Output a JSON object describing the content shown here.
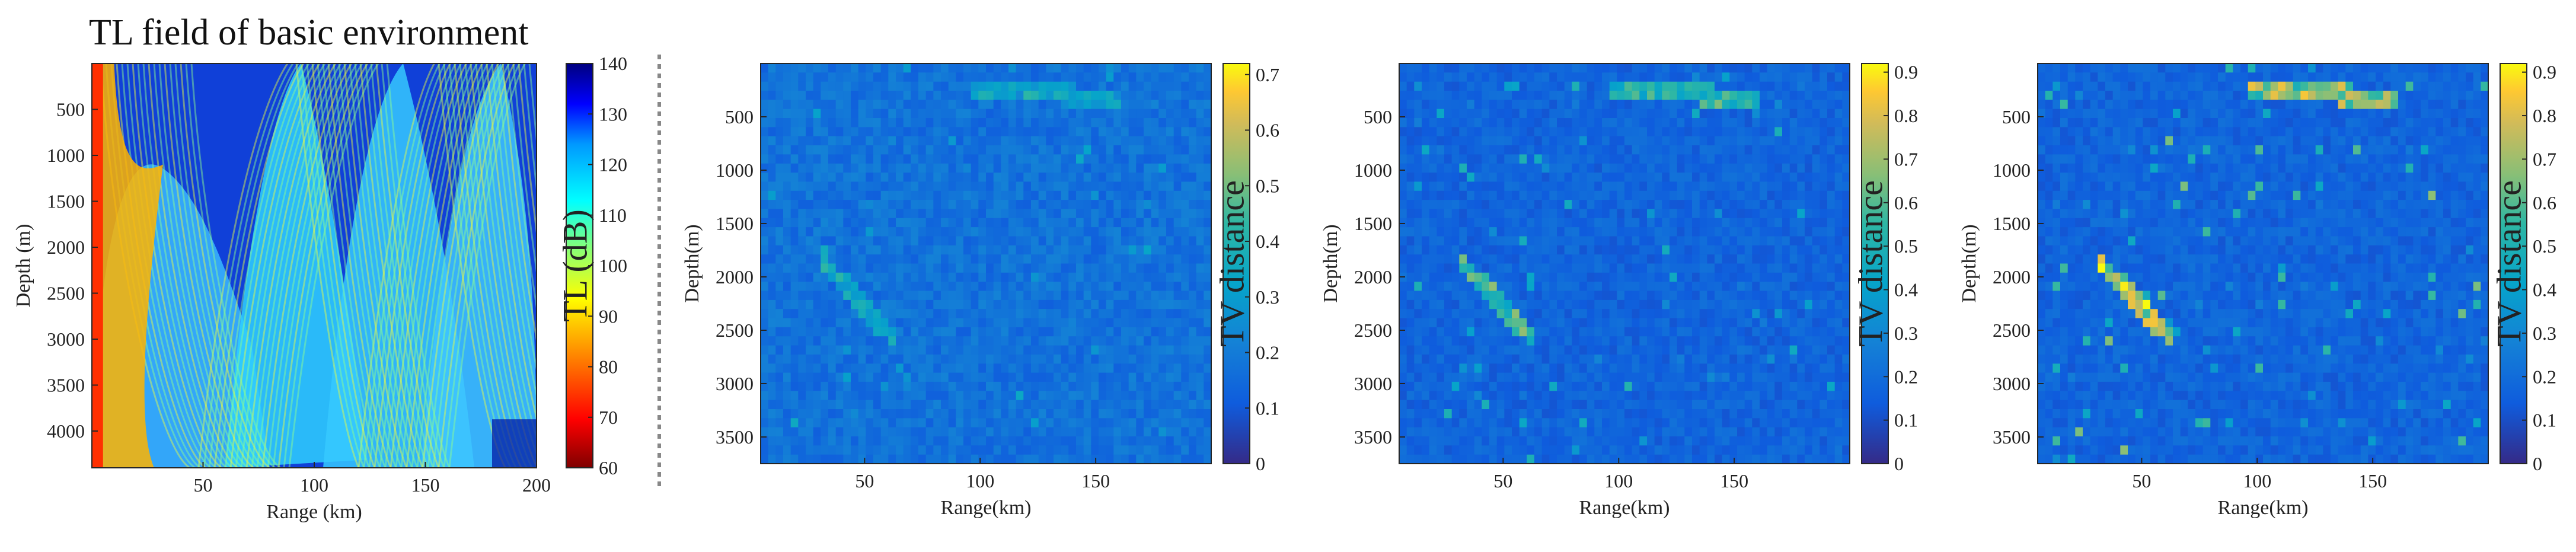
{
  "figure_title": "TL field of basic environment",
  "chart_data": [
    {
      "type": "heatmap",
      "title": "TL field of basic environment",
      "xlabel": "Range (km)",
      "ylabel": "Depth (m)",
      "xlim": [
        0,
        200
      ],
      "ylim": [
        4400,
        0
      ],
      "xticks": [
        50,
        100,
        150,
        200
      ],
      "yticks": [
        500,
        1000,
        1500,
        2000,
        2500,
        3000,
        3500,
        4000
      ],
      "colorbar": {
        "label": "TL (dB)",
        "range": [
          60,
          140
        ],
        "ticks": [
          60,
          70,
          80,
          90,
          100,
          110,
          120,
          130,
          140
        ],
        "colormap": "jet-reversed"
      },
      "description_values": {
        "convergence_zone_ranges_km": [
          0,
          55,
          100,
          145,
          190
        ]
      }
    },
    {
      "type": "heatmap",
      "title": "",
      "xlabel": "Range(km)",
      "ylabel": "Depth(m)",
      "xlim": [
        5,
        200
      ],
      "ylim": [
        3750,
        0
      ],
      "xticks": [
        50,
        100,
        150
      ],
      "yticks": [
        500,
        1000,
        1500,
        2000,
        2500,
        3000,
        3500
      ],
      "colorbar": {
        "label": "TV distance",
        "range": [
          0,
          0.72
        ],
        "ticks": [
          0,
          0.1,
          0.2,
          0.3,
          0.4,
          0.5,
          0.6,
          0.7
        ],
        "colormap": "parula"
      },
      "intensity": 0.25
    },
    {
      "type": "heatmap",
      "title": "",
      "xlabel": "Range(km)",
      "ylabel": "Depth(m)",
      "xlim": [
        5,
        200
      ],
      "ylim": [
        3750,
        0
      ],
      "xticks": [
        50,
        100,
        150
      ],
      "yticks": [
        500,
        1000,
        1500,
        2000,
        2500,
        3000,
        3500
      ],
      "colorbar": {
        "label": "TV distance",
        "range": [
          0,
          0.92
        ],
        "ticks": [
          0,
          0.1,
          0.2,
          0.3,
          0.4,
          0.5,
          0.6,
          0.7,
          0.8,
          0.9
        ],
        "colormap": "parula"
      },
      "intensity": 0.55
    },
    {
      "type": "heatmap",
      "title": "",
      "xlabel": "Range(km)",
      "ylabel": "Depth(m)",
      "xlim": [
        5,
        200
      ],
      "ylim": [
        3750,
        0
      ],
      "xticks": [
        50,
        100,
        150
      ],
      "yticks": [
        500,
        1000,
        1500,
        2000,
        2500,
        3000,
        3500
      ],
      "colorbar": {
        "label": "TV distance",
        "range": [
          0,
          0.92
        ],
        "ticks": [
          0,
          0.1,
          0.2,
          0.3,
          0.4,
          0.5,
          0.6,
          0.7,
          0.8,
          0.9
        ],
        "colormap": "parula"
      },
      "intensity": 0.8
    }
  ]
}
